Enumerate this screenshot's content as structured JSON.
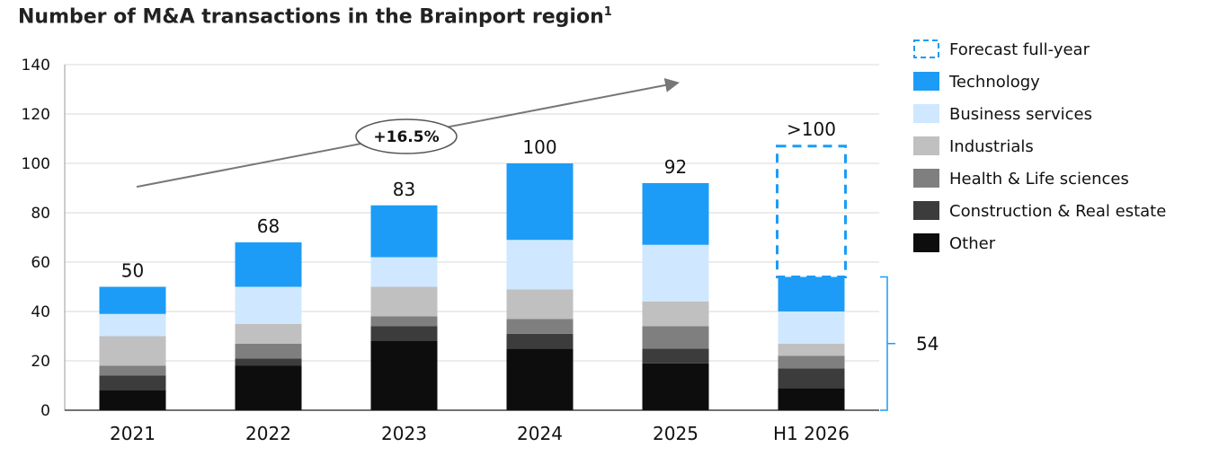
{
  "title": "Number of M&A transactions in the Brainport region",
  "title_footnote": "1",
  "chart_data": {
    "type": "bar",
    "stacked": true,
    "categories": [
      "2021",
      "2022",
      "2023",
      "2024",
      "2025",
      "H1 2026"
    ],
    "ylim": [
      0,
      140
    ],
    "yticks": [
      0,
      20,
      40,
      60,
      80,
      100,
      120,
      140
    ],
    "grid": true,
    "legend_position": "right",
    "series": [
      {
        "name": "Other",
        "color": "#0d0d0d",
        "values": [
          8,
          18,
          28,
          25,
          19,
          9
        ]
      },
      {
        "name": "Construction & Real estate",
        "color": "#3c3c3c",
        "values": [
          6,
          3,
          6,
          6,
          6,
          8
        ]
      },
      {
        "name": "Health & Life sciences",
        "color": "#7f7f7f",
        "values": [
          4,
          6,
          4,
          6,
          9,
          5
        ]
      },
      {
        "name": "Industrials",
        "color": "#c0c0c0",
        "values": [
          12,
          8,
          12,
          12,
          10,
          5
        ]
      },
      {
        "name": "Business services",
        "color": "#cfe8ff",
        "values": [
          9,
          15,
          12,
          20,
          23,
          13
        ]
      },
      {
        "name": "Technology",
        "color": "#1c9cf6",
        "values": [
          11,
          18,
          21,
          31,
          25,
          14
        ]
      }
    ],
    "totals": [
      "50",
      "68",
      "83",
      "100",
      "92",
      ">100"
    ],
    "forecast": {
      "name": "Forecast full-year",
      "category": "H1 2026",
      "from": 54,
      "to": 107,
      "label": ">100"
    },
    "h1_bracket_label": "54",
    "cagr_label": "+16.5%",
    "legend_order": [
      "Forecast full-year",
      "Technology",
      "Business services",
      "Industrials",
      "Health & Life sciences",
      "Construction & Real estate",
      "Other"
    ]
  }
}
